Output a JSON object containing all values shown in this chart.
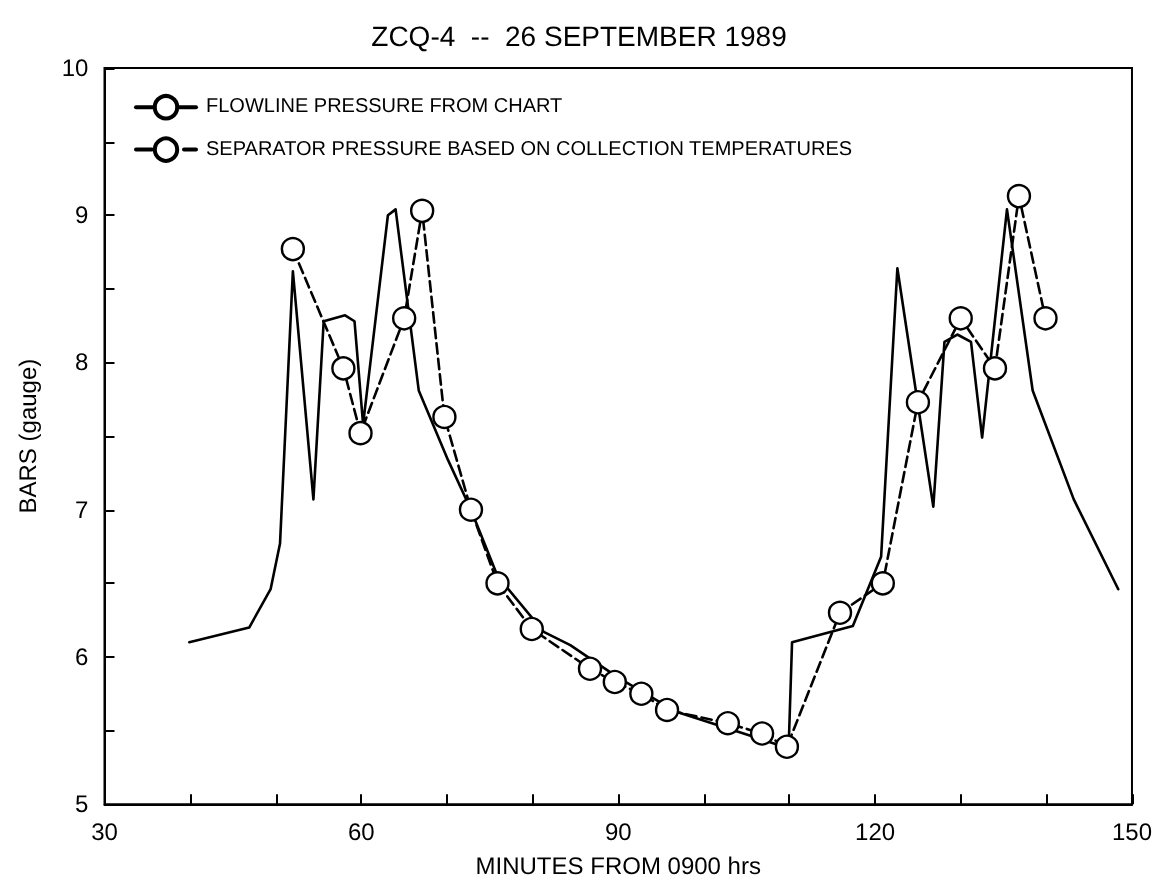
{
  "chart_data": {
    "type": "line",
    "title": "ZCQ-4  --  26 SEPTEMBER 1989",
    "xlabel": "MINUTES FROM 0900 hrs",
    "ylabel": "BARS (gauge)",
    "xlim": [
      30,
      150
    ],
    "xticks": [
      30,
      {
        "value": 40,
        "label": null
      },
      {
        "value": 50,
        "label": null
      },
      60,
      {
        "value": 70,
        "label": null
      },
      {
        "value": 80,
        "label": null
      },
      90,
      {
        "value": 100,
        "label": null
      },
      {
        "value": 110,
        "label": null
      },
      120,
      {
        "value": 130,
        "label": null
      },
      {
        "value": 140,
        "label": null
      },
      150
    ],
    "ylim": [
      5,
      10
    ],
    "yticks": [
      5,
      {
        "value": 5.5,
        "label": null
      },
      6,
      {
        "value": 6.5,
        "label": null
      },
      7,
      {
        "value": 7.5,
        "label": null
      },
      8,
      {
        "value": 8.5,
        "label": null
      },
      9,
      {
        "value": 9.5,
        "label": null
      },
      10
    ],
    "grid": false,
    "legend": "top left",
    "series": [
      {
        "name": "FLOWLINE PRESSURE FROM CHART",
        "color": "#000000",
        "marker": "none",
        "line_style": "solid",
        "x": [
          39.9,
          46.9,
          49.4,
          50.5,
          52.0,
          54.4,
          55.6,
          58.1,
          59.2,
          60.2,
          63.1,
          64.0,
          66.7,
          70.1,
          72.8,
          75.9,
          81.3,
          84.4,
          90.0,
          96.7,
          109.9,
          110.3,
          117.4,
          120.7,
          122.6,
          126.8,
          128.1,
          129.6,
          131.2,
          132.5,
          135.4,
          138.4,
          143.2,
          148.4
        ],
        "values": [
          6.1,
          6.2,
          6.46,
          6.77,
          8.62,
          7.07,
          8.28,
          8.32,
          8.28,
          7.58,
          9.0,
          9.04,
          7.81,
          7.34,
          7.0,
          6.55,
          6.17,
          6.08,
          5.86,
          5.63,
          5.38,
          6.1,
          6.21,
          6.68,
          8.64,
          7.02,
          8.14,
          8.19,
          8.14,
          7.49,
          9.04,
          7.81,
          7.07,
          6.46
        ]
      },
      {
        "name": "SEPARATOR PRESSURE BASED ON COLLECTION TEMPERATURES",
        "color": "#000000",
        "marker": "circle",
        "line_style": "dashed",
        "x": [
          52.0,
          57.9,
          59.9,
          65.0,
          67.1,
          69.7,
          72.8,
          75.9,
          79.9,
          86.7,
          89.6,
          92.7,
          95.7,
          102.8,
          106.8,
          109.7,
          115.9,
          120.9,
          125.0,
          130.0,
          134.0,
          136.8,
          139.9
        ],
        "values": [
          8.77,
          7.96,
          7.52,
          8.3,
          9.03,
          7.63,
          7.0,
          6.5,
          6.19,
          5.92,
          5.83,
          5.75,
          5.64,
          5.55,
          5.48,
          5.39,
          6.3,
          6.5,
          7.73,
          8.3,
          7.96,
          9.13,
          8.3
        ]
      }
    ]
  }
}
